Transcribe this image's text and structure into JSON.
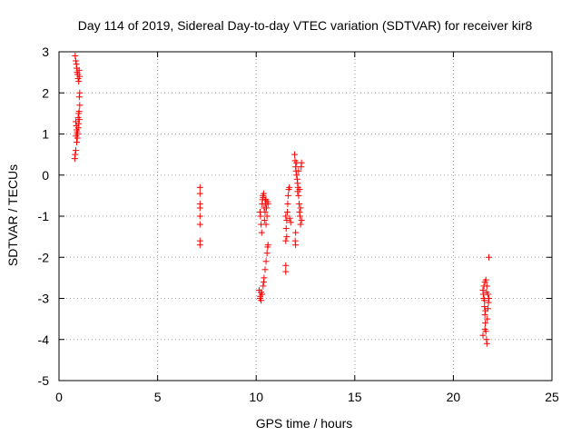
{
  "chart_data": {
    "type": "scatter",
    "title": "Day 114 of 2019, Sidereal Day-to-day VTEC variation (SDTVAR) for receiver kir8",
    "xlabel": "GPS time / hours",
    "ylabel": "SDTVAR / TECUs",
    "xlim": [
      0,
      25
    ],
    "ylim": [
      -5,
      3
    ],
    "xticks": [
      0,
      5,
      10,
      15,
      20,
      25
    ],
    "yticks": [
      -5,
      -4,
      -3,
      -2,
      -1,
      0,
      1,
      2,
      3
    ],
    "grid": true,
    "marker": "+",
    "color": "#ff0000",
    "series": [
      {
        "name": "SDTVAR",
        "points": [
          [
            0.82,
            2.9
          ],
          [
            0.85,
            2.78
          ],
          [
            0.88,
            2.7
          ],
          [
            0.9,
            2.6
          ],
          [
            0.92,
            2.5
          ],
          [
            0.95,
            2.45
          ],
          [
            0.97,
            2.35
          ],
          [
            1.0,
            2.28
          ],
          [
            1.02,
            2.55
          ],
          [
            1.04,
            2.4
          ],
          [
            1.05,
            2.0
          ],
          [
            1.03,
            1.9
          ],
          [
            0.85,
            1.3
          ],
          [
            0.88,
            1.2
          ],
          [
            0.9,
            1.1
          ],
          [
            0.92,
            1.05
          ],
          [
            0.95,
            1.0
          ],
          [
            0.97,
            1.4
          ],
          [
            1.0,
            1.5
          ],
          [
            1.02,
            1.55
          ],
          [
            1.05,
            1.7
          ],
          [
            1.0,
            1.25
          ],
          [
            0.93,
            0.9
          ],
          [
            0.9,
            0.8
          ],
          [
            0.85,
            0.6
          ],
          [
            0.82,
            0.5
          ],
          [
            0.8,
            0.4
          ],
          [
            0.87,
            0.95
          ],
          [
            0.98,
            1.15
          ],
          [
            1.03,
            1.35
          ],
          [
            7.15,
            -0.3
          ],
          [
            7.15,
            -0.45
          ],
          [
            7.15,
            -0.7
          ],
          [
            7.15,
            -0.8
          ],
          [
            7.15,
            -1.0
          ],
          [
            7.15,
            -1.2
          ],
          [
            7.15,
            -1.6
          ],
          [
            7.15,
            -1.7
          ],
          [
            10.2,
            -0.9
          ],
          [
            10.22,
            -1.0
          ],
          [
            10.25,
            -1.2
          ],
          [
            10.28,
            -1.4
          ],
          [
            10.3,
            -0.7
          ],
          [
            10.32,
            -0.6
          ],
          [
            10.35,
            -0.5
          ],
          [
            10.38,
            -0.45
          ],
          [
            10.4,
            -0.8
          ],
          [
            10.42,
            -1.1
          ],
          [
            10.45,
            -0.9
          ],
          [
            10.48,
            -0.7
          ],
          [
            10.5,
            -0.6
          ],
          [
            10.52,
            -0.8
          ],
          [
            10.55,
            -1.0
          ],
          [
            10.58,
            -0.65
          ],
          [
            10.6,
            -0.7
          ],
          [
            10.35,
            -0.55
          ],
          [
            10.45,
            -0.6
          ],
          [
            10.5,
            -1.2
          ],
          [
            10.15,
            -2.8
          ],
          [
            10.2,
            -2.95
          ],
          [
            10.25,
            -3.05
          ],
          [
            10.3,
            -2.9
          ],
          [
            10.35,
            -2.7
          ],
          [
            10.38,
            -2.6
          ],
          [
            10.4,
            -2.5
          ],
          [
            10.45,
            -2.3
          ],
          [
            10.5,
            -2.1
          ],
          [
            10.55,
            -1.9
          ],
          [
            10.58,
            -1.75
          ],
          [
            10.6,
            -1.7
          ],
          [
            10.2,
            -3.0
          ],
          [
            10.25,
            -2.85
          ],
          [
            11.5,
            -2.2
          ],
          [
            11.5,
            -2.35
          ],
          [
            11.5,
            -1.6
          ],
          [
            11.52,
            -1.3
          ],
          [
            11.55,
            -1.1
          ],
          [
            11.58,
            -0.9
          ],
          [
            11.6,
            -0.7
          ],
          [
            11.62,
            -0.5
          ],
          [
            11.65,
            -0.35
          ],
          [
            11.68,
            -0.3
          ],
          [
            11.7,
            -1.05
          ],
          [
            11.75,
            -1.15
          ],
          [
            11.5,
            -1.0
          ],
          [
            11.55,
            -1.5
          ],
          [
            11.95,
            0.5
          ],
          [
            11.97,
            0.35
          ],
          [
            12.0,
            0.2
          ],
          [
            12.02,
            0.1
          ],
          [
            12.05,
            0.0
          ],
          [
            12.08,
            -0.1
          ],
          [
            12.1,
            -0.2
          ],
          [
            12.12,
            -0.3
          ],
          [
            12.15,
            -0.5
          ],
          [
            12.18,
            -0.7
          ],
          [
            12.2,
            -0.9
          ],
          [
            12.22,
            -1.0
          ],
          [
            12.25,
            -1.2
          ],
          [
            12.0,
            -1.4
          ],
          [
            11.98,
            -1.6
          ],
          [
            12.3,
            0.3
          ],
          [
            12.28,
            0.2
          ],
          [
            12.0,
            -1.7
          ],
          [
            12.05,
            0.3
          ],
          [
            12.1,
            -0.4
          ],
          [
            12.2,
            -0.35
          ],
          [
            12.25,
            -0.8
          ],
          [
            12.3,
            -1.1
          ],
          [
            12.15,
            0.1
          ],
          [
            21.5,
            -2.8
          ],
          [
            21.52,
            -2.9
          ],
          [
            21.55,
            -3.0
          ],
          [
            21.58,
            -3.2
          ],
          [
            21.6,
            -3.4
          ],
          [
            21.62,
            -3.6
          ],
          [
            21.65,
            -3.8
          ],
          [
            21.68,
            -4.0
          ],
          [
            21.7,
            -4.1
          ],
          [
            21.55,
            -2.7
          ],
          [
            21.6,
            -2.6
          ],
          [
            21.65,
            -2.55
          ],
          [
            21.7,
            -2.7
          ],
          [
            21.75,
            -2.9
          ],
          [
            21.78,
            -3.1
          ],
          [
            21.8,
            -3.0
          ],
          [
            21.62,
            -3.3
          ],
          [
            21.72,
            -3.5
          ],
          [
            21.5,
            -3.9
          ],
          [
            21.8,
            -2.0
          ],
          [
            21.58,
            -3.05
          ],
          [
            21.68,
            -2.85
          ],
          [
            21.75,
            -3.25
          ],
          [
            21.6,
            -3.75
          ]
        ]
      }
    ]
  }
}
